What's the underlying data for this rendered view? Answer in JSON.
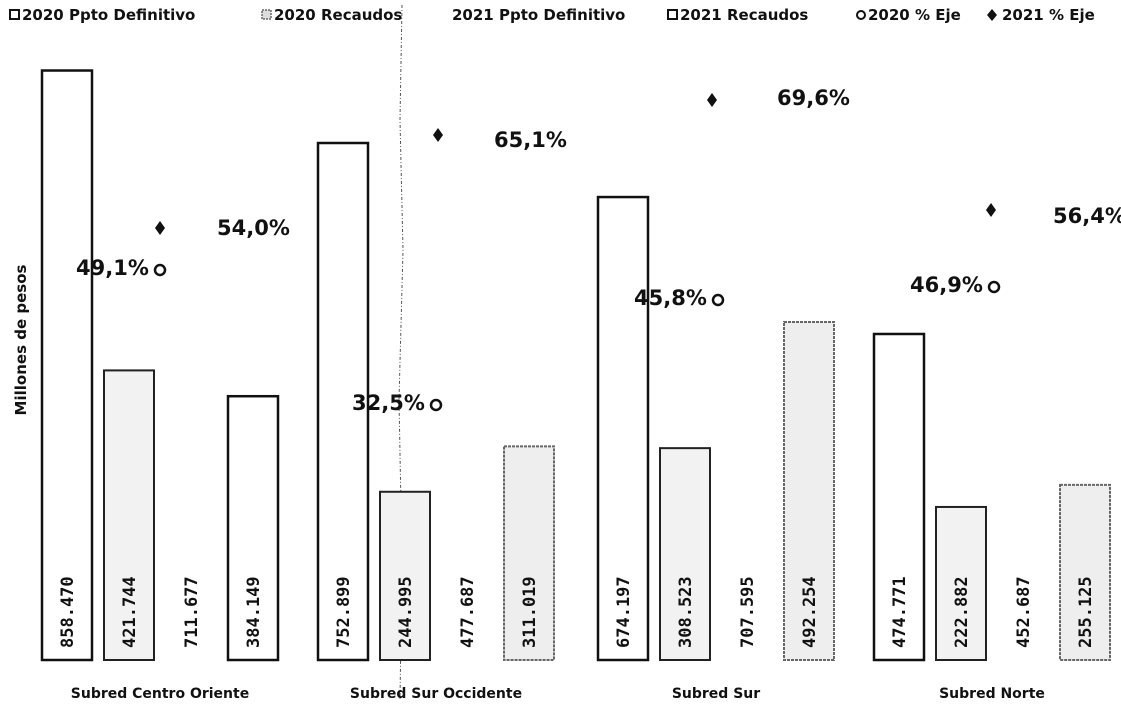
{
  "chart_data": {
    "type": "bar",
    "title": "",
    "xlabel": "",
    "ylabel": "Millones de pesos",
    "legend_position": "top",
    "grid": false,
    "ylim": [
      0,
      900000
    ],
    "categories": [
      "Subred Centro Oriente",
      "Subred Sur Occidente",
      "Subred Sur",
      "Subred Norte"
    ],
    "series": [
      {
        "name": "2020  Ppto Definitivo",
        "marker": "square",
        "values": [
          858470,
          752899,
          674197,
          474771
        ]
      },
      {
        "name": "2020 Recaudos",
        "marker": "dotted-square",
        "values": [
          421744,
          244995,
          308523,
          222882
        ]
      },
      {
        "name": "2021  Ppto Definitivo",
        "marker": "none",
        "values": [
          711677,
          477687,
          707595,
          452687
        ]
      },
      {
        "name": "2021  Recaudos",
        "marker": "square",
        "values": [
          384149,
          311019,
          492254,
          255125
        ]
      }
    ],
    "value_labels": [
      [
        "858.470",
        "752.899",
        "674.197",
        "474.771"
      ],
      [
        "421.744",
        "244.995",
        "308.523",
        "222.882"
      ],
      [
        "711.677",
        "477.687",
        "707.595",
        "452.687"
      ],
      [
        "384.149",
        "311.019",
        "492.254",
        "255.125"
      ]
    ],
    "pct_series": [
      {
        "name": "2020  % Eje",
        "symbol": "o",
        "labels": [
          "49,1%",
          "32,5%",
          "45,8%",
          "46,9%"
        ]
      },
      {
        "name": "2021  % Eje",
        "symbol": "diamond",
        "labels": [
          "54,0%",
          "65,1%",
          "69,6%",
          "56,4%"
        ]
      }
    ],
    "colors": {
      "ink": "#111111",
      "fill": "#ffffff",
      "shade": "#d9d9d9"
    }
  }
}
